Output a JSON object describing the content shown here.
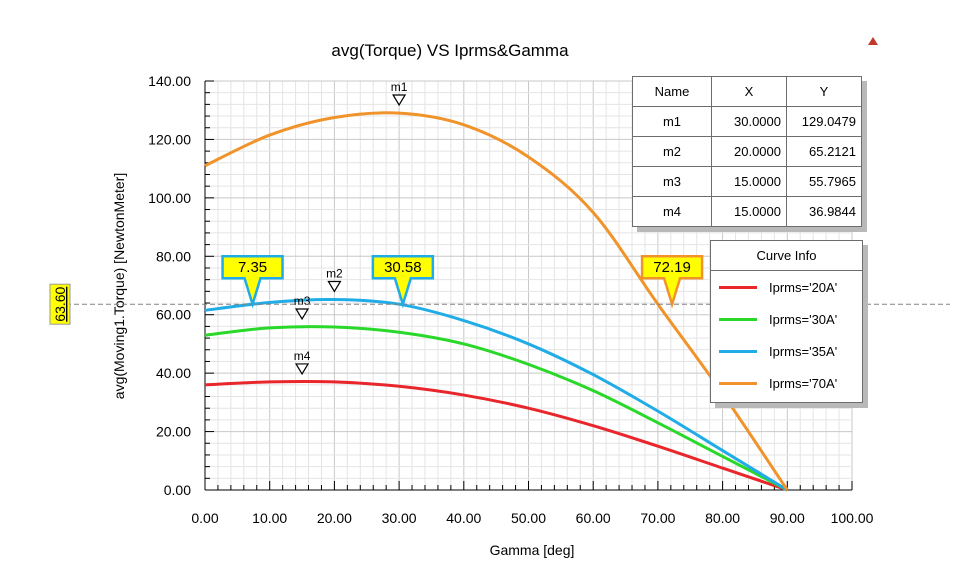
{
  "chart_data": {
    "type": "line",
    "title": "avg(Torque) VS Iprms&Gamma",
    "xlabel": "Gamma [deg]",
    "ylabel": "avg(Moving1.Torque) [NewtonMeter]",
    "xlim": [
      0,
      100
    ],
    "ylim": [
      0,
      140
    ],
    "xticks": [
      "0.00",
      "10.00",
      "20.00",
      "30.00",
      "40.00",
      "50.00",
      "60.00",
      "70.00",
      "80.00",
      "90.00",
      "100.00"
    ],
    "yticks": [
      "0.00",
      "20.00",
      "40.00",
      "60.00",
      "80.00",
      "100.00",
      "120.00",
      "140.00"
    ],
    "grid": true,
    "x": [
      0,
      10,
      20,
      30,
      40,
      50,
      60,
      70,
      80,
      90
    ],
    "series": [
      {
        "name": "Iprms='20A'",
        "color": "#e8262b",
        "values": [
          36.0,
          37.0,
          37.0,
          35.5,
          32.5,
          28.0,
          22.0,
          15.0,
          7.5,
          0
        ]
      },
      {
        "name": "Iprms='30A'",
        "color": "#2ad82a",
        "values": [
          53.0,
          55.5,
          55.8,
          54.0,
          50.0,
          43.0,
          34.0,
          23.0,
          11.5,
          0
        ]
      },
      {
        "name": "Iprms='35A'",
        "color": "#20ace6",
        "values": [
          61.5,
          64.2,
          65.2,
          63.6,
          58.0,
          50.0,
          39.5,
          27.0,
          13.5,
          0
        ]
      },
      {
        "name": "Iprms='70A'",
        "color": "#f0932b",
        "values": [
          111.0,
          121.5,
          127.5,
          129.0,
          125.0,
          114.0,
          95.0,
          63.6,
          33.0,
          0
        ]
      }
    ],
    "markers": [
      {
        "name": "m1",
        "x": 30.0,
        "y": 129.0479
      },
      {
        "name": "m2",
        "x": 20.0,
        "y": 65.2121
      },
      {
        "name": "m3",
        "x": 15.0,
        "y": 55.7965
      },
      {
        "name": "m4",
        "x": 15.0,
        "y": 36.9844
      }
    ],
    "cursor": {
      "y_label": "63.60",
      "y": 63.6
    },
    "callouts": [
      {
        "label": "7.35",
        "x": 7.35,
        "y": 63.6,
        "color": "#20ace6"
      },
      {
        "label": "30.58",
        "x": 30.58,
        "y": 63.6,
        "color": "#20ace6"
      },
      {
        "label": "72.19",
        "x": 72.19,
        "y": 63.6,
        "color": "#f0932b"
      }
    ]
  },
  "marker_table": {
    "headers": [
      "Name",
      "X",
      "Y"
    ],
    "rows": [
      [
        "m1",
        "30.0000",
        "129.0479"
      ],
      [
        "m2",
        "20.0000",
        "65.2121"
      ],
      [
        "m3",
        "15.0000",
        "55.7965"
      ],
      [
        "m4",
        "15.0000",
        "36.9844"
      ]
    ]
  },
  "legend": {
    "title": "Curve Info",
    "items": [
      {
        "label": "Iprms='20A'",
        "color": "#e8262b"
      },
      {
        "label": "Iprms='30A'",
        "color": "#2ad82a"
      },
      {
        "label": "Iprms='35A'",
        "color": "#20ace6"
      },
      {
        "label": "Iprms='70A'",
        "color": "#f0932b"
      }
    ]
  }
}
